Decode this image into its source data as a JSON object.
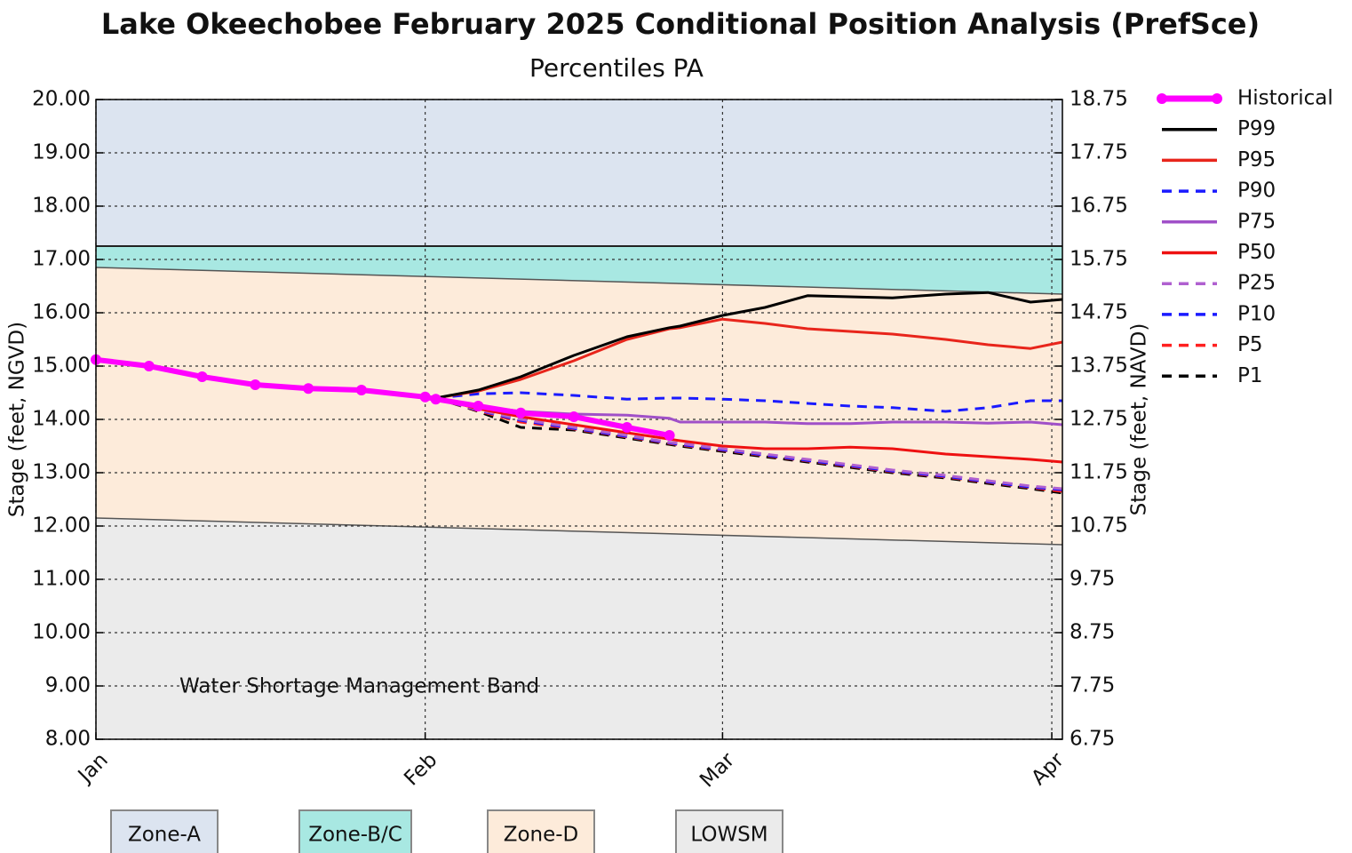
{
  "chart_data": {
    "type": "line",
    "title": "Lake Okeechobee February 2025 Conditional Position Analysis (PrefSce)",
    "subtitle": "Percentiles PA",
    "y_label": "Stage (feet, NGVD)",
    "y2_label": "Stage (feet, NAVD)",
    "annotation": "Water Shortage Management Band",
    "xlim": [
      0,
      91
    ],
    "xticks": [
      {
        "value": 0,
        "label": "Jan"
      },
      {
        "value": 31,
        "label": "Feb"
      },
      {
        "value": 59,
        "label": "Mar"
      },
      {
        "value": 90,
        "label": "Apr"
      }
    ],
    "ylim": [
      8,
      20
    ],
    "yticks": [
      {
        "value": 20,
        "label": "20.00"
      },
      {
        "value": 19,
        "label": "19.00"
      },
      {
        "value": 18,
        "label": "18.00"
      },
      {
        "value": 17,
        "label": "17.00"
      },
      {
        "value": 16,
        "label": "16.00"
      },
      {
        "value": 15,
        "label": "15.00"
      },
      {
        "value": 14,
        "label": "14.00"
      },
      {
        "value": 13,
        "label": "13.00"
      },
      {
        "value": 12,
        "label": "12.00"
      },
      {
        "value": 11,
        "label": "11.00"
      },
      {
        "value": 10,
        "label": "10.00"
      },
      {
        "value": 9,
        "label": "9.00"
      },
      {
        "value": 8,
        "label": "8.00"
      }
    ],
    "y2lim": [
      6.75,
      18.75
    ],
    "y2ticks": [
      18.75,
      17.75,
      16.75,
      15.75,
      14.75,
      13.75,
      12.75,
      11.75,
      10.75,
      9.75,
      8.75,
      7.75,
      6.75
    ],
    "grid": true,
    "legend": "right",
    "bands": {
      "x": [
        0,
        91
      ],
      "items": [
        {
          "name": "Zone-A",
          "color": "#dce4f0",
          "values": [
            17.25,
            17.25
          ]
        },
        {
          "name": "Zone-B/C",
          "color": "#a8e8e2",
          "values": [
            16.85,
            16.35
          ]
        },
        {
          "name": "Zone-D",
          "color": "#fdebda",
          "values": [
            12.15,
            11.65
          ]
        },
        {
          "name": "LOWSM",
          "color": "#ebebeb",
          "values": [
            8,
            8
          ]
        }
      ]
    },
    "x": [
      0,
      5,
      10,
      15,
      20,
      25,
      31,
      32,
      36,
      40,
      45,
      50,
      54,
      55,
      59,
      63,
      67,
      71,
      75,
      80,
      84,
      88,
      91
    ],
    "series": [
      {
        "name": "Historical",
        "color": "#ff00ff",
        "style": "solid",
        "marker": true,
        "values": [
          15.12,
          15.0,
          14.8,
          14.65,
          14.58,
          14.55,
          14.42,
          14.38,
          14.25,
          14.12,
          14.05,
          13.85,
          13.7,
          null,
          null,
          null,
          null,
          null,
          null,
          null,
          null,
          null,
          null
        ]
      },
      {
        "name": "P99",
        "color": "#000000",
        "style": "solid",
        "values": [
          null,
          null,
          null,
          null,
          null,
          null,
          null,
          14.4,
          14.55,
          14.8,
          15.2,
          15.55,
          15.72,
          15.75,
          15.95,
          16.1,
          16.32,
          16.3,
          16.28,
          16.35,
          16.38,
          16.2,
          16.25
        ]
      },
      {
        "name": "P95",
        "color": "#e8251b",
        "style": "solid",
        "values": [
          null,
          null,
          null,
          null,
          null,
          null,
          null,
          14.4,
          14.53,
          14.75,
          15.1,
          15.5,
          15.7,
          15.72,
          15.88,
          15.8,
          15.7,
          15.65,
          15.6,
          15.5,
          15.4,
          15.33,
          15.45
        ]
      },
      {
        "name": "P90",
        "color": "#1a1aff",
        "style": "dashed",
        "values": [
          null,
          null,
          null,
          null,
          null,
          null,
          null,
          14.4,
          14.48,
          14.5,
          14.45,
          14.38,
          14.4,
          14.4,
          14.38,
          14.35,
          14.3,
          14.25,
          14.22,
          14.15,
          14.22,
          14.35,
          14.35
        ]
      },
      {
        "name": "P75",
        "color": "#a050c8",
        "style": "solid",
        "values": [
          null,
          null,
          null,
          null,
          null,
          null,
          null,
          14.4,
          14.25,
          14.15,
          14.1,
          14.08,
          14.02,
          13.95,
          13.95,
          13.95,
          13.92,
          13.92,
          13.95,
          13.95,
          13.93,
          13.95,
          13.9
        ]
      },
      {
        "name": "P50",
        "color": "#ee1111",
        "style": "solid",
        "values": [
          null,
          null,
          null,
          null,
          null,
          null,
          null,
          14.4,
          14.2,
          14.05,
          13.9,
          13.75,
          13.63,
          13.6,
          13.5,
          13.45,
          13.45,
          13.48,
          13.45,
          13.35,
          13.3,
          13.25,
          13.2
        ]
      },
      {
        "name": "P25",
        "color": "#b060d0",
        "style": "dashed",
        "values": [
          null,
          null,
          null,
          null,
          null,
          null,
          null,
          14.4,
          14.18,
          14.0,
          13.85,
          13.7,
          13.57,
          13.55,
          13.45,
          13.35,
          13.25,
          13.15,
          13.05,
          12.95,
          12.85,
          12.75,
          12.7
        ]
      },
      {
        "name": "P10",
        "color": "#1a1aff",
        "style": "dashed",
        "values": [
          null,
          null,
          null,
          null,
          null,
          null,
          null,
          14.4,
          14.17,
          13.98,
          13.83,
          13.68,
          13.56,
          13.53,
          13.43,
          13.33,
          13.23,
          13.13,
          13.03,
          12.93,
          12.83,
          12.73,
          12.68
        ]
      },
      {
        "name": "P5",
        "color": "#ff2020",
        "style": "dashed",
        "values": [
          null,
          null,
          null,
          null,
          null,
          null,
          null,
          14.4,
          14.16,
          13.95,
          13.82,
          13.67,
          13.55,
          13.52,
          13.42,
          13.32,
          13.22,
          13.12,
          13.02,
          12.92,
          12.82,
          12.72,
          12.65
        ]
      },
      {
        "name": "P1",
        "color": "#000000",
        "style": "dashed",
        "values": [
          null,
          null,
          null,
          null,
          null,
          null,
          null,
          14.4,
          14.15,
          13.85,
          13.8,
          13.65,
          13.53,
          13.5,
          13.4,
          13.3,
          13.2,
          13.1,
          13.0,
          12.9,
          12.8,
          12.7,
          12.62
        ]
      }
    ]
  }
}
